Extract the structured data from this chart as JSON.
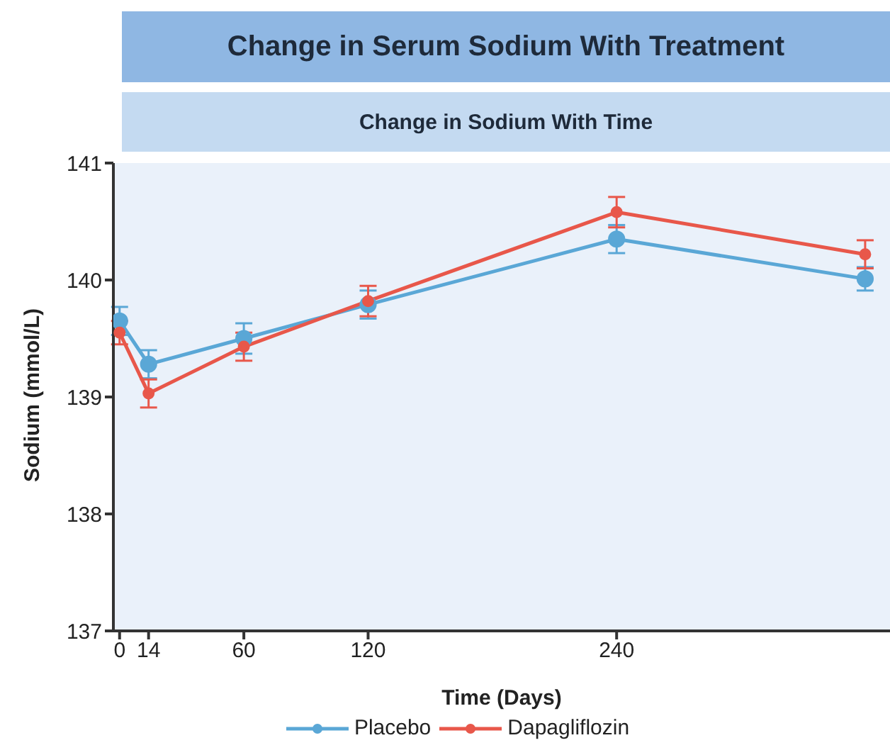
{
  "chart_data": {
    "type": "line",
    "title": "Change in Serum Sodium With Treatment",
    "subtitle": "Change in Sodium With Time",
    "xlabel": "Time (Days)",
    "ylabel": "Sodium (mmol/L)",
    "x": [
      0,
      14,
      60,
      120,
      240,
      360
    ],
    "series": [
      {
        "name": "Placebo",
        "color": "#5aa7d6",
        "values": [
          139.65,
          139.28,
          139.5,
          139.79,
          140.35,
          140.01
        ],
        "errors": [
          0.12,
          0.12,
          0.13,
          0.12,
          0.12,
          0.1
        ]
      },
      {
        "name": "Dapagliflozin",
        "color": "#e8574a",
        "values": [
          139.55,
          139.03,
          139.43,
          139.82,
          140.58,
          140.22
        ],
        "errors": [
          0.1,
          0.12,
          0.12,
          0.13,
          0.13,
          0.12
        ]
      }
    ],
    "xlim": [
      -3,
      372
    ],
    "xticks": [
      0,
      14,
      60,
      120,
      240
    ],
    "ylim": [
      137,
      141
    ],
    "yticks": [
      137,
      138,
      139,
      140,
      141
    ],
    "grid": false,
    "legend": "bottom",
    "marker": "circle",
    "line_style": "solid"
  }
}
